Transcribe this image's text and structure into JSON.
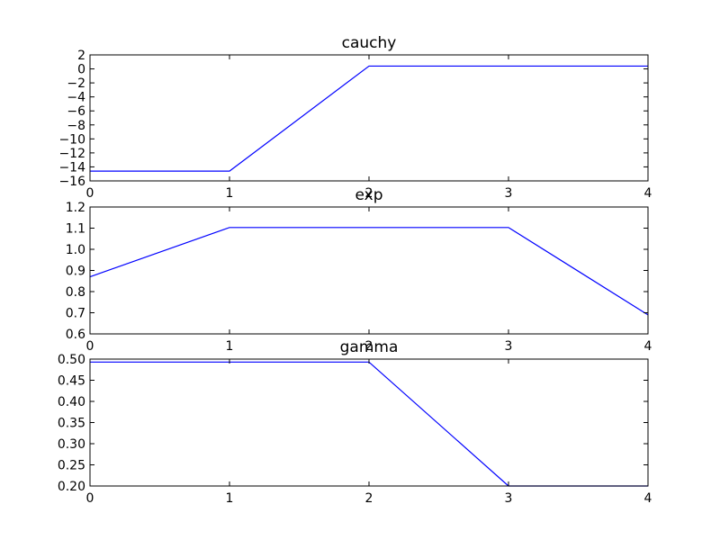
{
  "figure": {
    "background": "#ffffff",
    "line_color": "#0000ff"
  },
  "chart_data": [
    {
      "type": "line",
      "title": "cauchy",
      "x": [
        0,
        1,
        2,
        3,
        4
      ],
      "series": [
        {
          "values": [
            -14.6,
            -14.6,
            0.4,
            0.4,
            0.4
          ]
        }
      ],
      "xlim": [
        0,
        4
      ],
      "ylim": [
        -16,
        2
      ],
      "xticks": [
        0,
        1,
        2,
        3,
        4
      ],
      "xtick_labels": [
        "0",
        "1",
        "2",
        "3",
        "4"
      ],
      "yticks": [
        -16,
        -14,
        -12,
        -10,
        -8,
        -6,
        -4,
        -2,
        0,
        2
      ],
      "ytick_labels": [
        "−16",
        "−14",
        "−12",
        "−10",
        "−8",
        "−6",
        "−4",
        "−2",
        "0",
        "2"
      ],
      "grid": false
    },
    {
      "type": "line",
      "title": "exp",
      "x": [
        0,
        1,
        2,
        3,
        4
      ],
      "series": [
        {
          "values": [
            0.87,
            1.103,
            1.103,
            1.103,
            0.69
          ]
        }
      ],
      "xlim": [
        0,
        4
      ],
      "ylim": [
        0.6,
        1.2
      ],
      "xticks": [
        0,
        1,
        2,
        3,
        4
      ],
      "xtick_labels": [
        "0",
        "1",
        "2",
        "3",
        "4"
      ],
      "yticks": [
        0.6,
        0.7,
        0.8,
        0.9,
        1.0,
        1.1,
        1.2
      ],
      "ytick_labels": [
        "0.6",
        "0.7",
        "0.8",
        "0.9",
        "1.0",
        "1.1",
        "1.2"
      ],
      "grid": false
    },
    {
      "type": "line",
      "title": "gamma",
      "x": [
        0,
        1,
        2,
        3,
        4
      ],
      "series": [
        {
          "values": [
            0.493,
            0.493,
            0.493,
            0.2,
            0.2
          ]
        }
      ],
      "xlim": [
        0,
        4
      ],
      "ylim": [
        0.2,
        0.5
      ],
      "xticks": [
        0,
        1,
        2,
        3,
        4
      ],
      "xtick_labels": [
        "0",
        "1",
        "2",
        "3",
        "4"
      ],
      "yticks": [
        0.2,
        0.25,
        0.3,
        0.35,
        0.4,
        0.45,
        0.5
      ],
      "ytick_labels": [
        "0.20",
        "0.25",
        "0.30",
        "0.35",
        "0.40",
        "0.45",
        "0.50"
      ],
      "grid": false
    }
  ]
}
